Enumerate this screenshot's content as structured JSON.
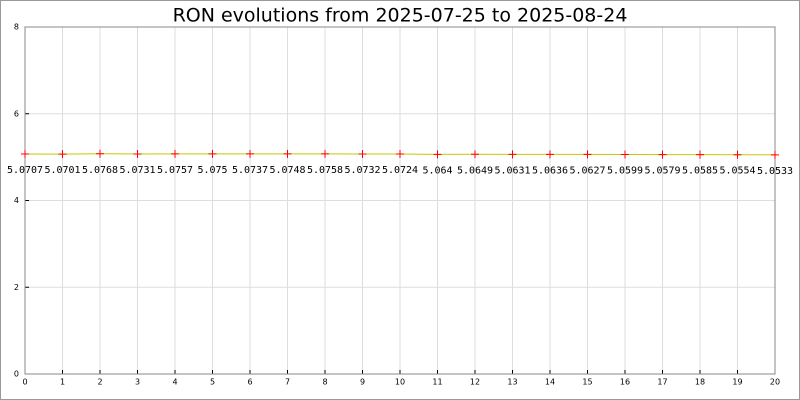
{
  "chart_data": {
    "type": "line",
    "title": "RON evolutions from 2025-07-25 to 2025-08-24",
    "x": [
      0,
      1,
      2,
      3,
      4,
      5,
      6,
      7,
      8,
      9,
      10,
      11,
      12,
      13,
      14,
      15,
      16,
      17,
      18,
      19,
      20
    ],
    "series": [
      {
        "color": "#c8c800",
        "marker_color": "#ff0000",
        "values": [
          5.0707,
          5.0701,
          5.0768,
          5.0731,
          5.0757,
          5.075,
          5.0737,
          5.0748,
          5.0758,
          5.0732,
          5.0724,
          5.064,
          5.0649,
          5.0631,
          5.0636,
          5.0627,
          5.0599,
          5.0579,
          5.0585,
          5.0554,
          5.0533
        ]
      }
    ],
    "xlim": [
      0,
      20
    ],
    "xticks": [
      0,
      1,
      2,
      3,
      4,
      5,
      6,
      7,
      8,
      9,
      10,
      11,
      12,
      13,
      14,
      15,
      16,
      17,
      18,
      19,
      20
    ],
    "ylim": [
      0,
      8
    ],
    "yticks": [
      0,
      2,
      4,
      6,
      8
    ],
    "grid": true
  }
}
